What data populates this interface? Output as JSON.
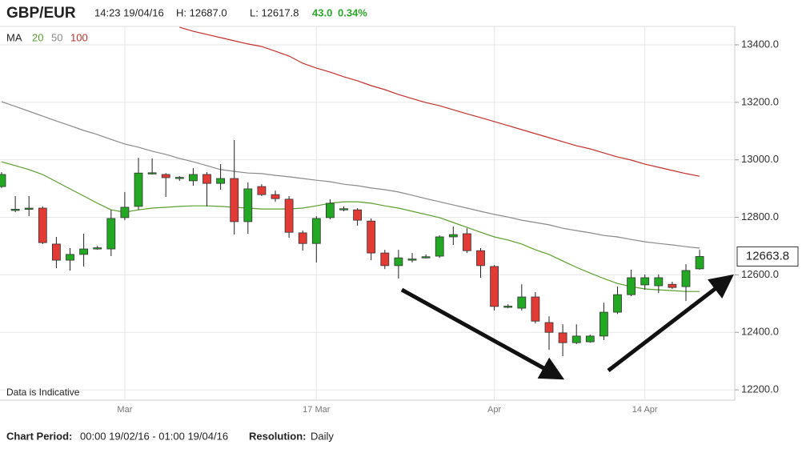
{
  "header": {
    "symbol": "GBP/EUR",
    "time": "14:23 19/04/16",
    "high": "H: 12687.0",
    "low": "L: 12617.8",
    "change": "43.0",
    "change_pct": "0.34%"
  },
  "chart_data": {
    "type": "candlestick",
    "categories": [
      null,
      null,
      null,
      null,
      null,
      null,
      null,
      null,
      null,
      "Mar",
      null,
      null,
      null,
      null,
      null,
      null,
      null,
      null,
      null,
      null,
      null,
      null,
      null,
      "17 Mar",
      null,
      null,
      null,
      null,
      null,
      null,
      null,
      null,
      null,
      null,
      null,
      null,
      "Apr",
      null,
      null,
      null,
      null,
      null,
      null,
      null,
      null,
      null,
      null,
      "14 Apr",
      null,
      null,
      null,
      null
    ],
    "open": [
      12907,
      12826,
      12830,
      12832,
      12707,
      12651,
      12671,
      12692,
      12690,
      12799,
      12838,
      12953,
      12949,
      12937,
      12927,
      12949,
      12918,
      12935,
      12785,
      12907,
      12879,
      12863,
      12746,
      12709,
      12799,
      12828,
      12826,
      12787,
      12676,
      12632,
      12653,
      12661,
      12665,
      12732,
      12743,
      12684,
      12629,
      12489,
      12484,
      12523,
      12434,
      12398,
      12364,
      12367,
      12387,
      12470,
      12531,
      12565,
      12562,
      12567,
      12559,
      12620.8
    ],
    "high": [
      12957,
      12874,
      12874,
      12838,
      12732,
      12693,
      12743,
      12701,
      12826,
      12888,
      13007,
      13005,
      12954,
      12943,
      12971,
      12957,
      12985,
      13069,
      12921,
      12915,
      12893,
      12874,
      12754,
      12804,
      12863,
      12838,
      12832,
      12796,
      12687,
      12687,
      12676,
      12671,
      12737,
      12768,
      12762,
      12693,
      12634,
      12498,
      12567,
      12540,
      12456,
      12428,
      12428,
      12392,
      12503,
      12559,
      12618,
      12601,
      12601,
      12576,
      12637,
      12687
    ],
    "low": [
      12902,
      12818,
      12804,
      12707,
      12623,
      12615,
      12629,
      12687,
      12665,
      12790,
      12826,
      12949,
      12871,
      12927,
      12910,
      12838,
      12896,
      12740,
      12743,
      12874,
      12854,
      12729,
      12684,
      12643,
      12793,
      12821,
      12771,
      12651,
      12620,
      12587,
      12643,
      12657,
      12659,
      12704,
      12676,
      12590,
      12476,
      12484,
      12476,
      12431,
      12339,
      12317,
      12359,
      12364,
      12373,
      12464,
      12526,
      12548,
      12537,
      12551,
      12509,
      12617.8
    ],
    "close": [
      12949,
      12828,
      12832,
      12712,
      12651,
      12671,
      12690,
      12694,
      12796,
      12835,
      12954,
      12955,
      12938,
      12939,
      12949,
      12918,
      12935,
      12785,
      12899,
      12879,
      12865,
      12748,
      12709,
      12796,
      12849,
      12830,
      12790,
      12676,
      12632,
      12659,
      12655,
      12663,
      12732,
      12740,
      12684,
      12632,
      12490,
      12491,
      12523,
      12439,
      12400,
      12364,
      12387,
      12387,
      12470,
      12531,
      12590,
      12590,
      12590,
      12556,
      12615,
      12663.8
    ],
    "up_color": "#22a822",
    "down_color": "#e23b36",
    "legend_title": "MA",
    "series": [
      {
        "name": "20",
        "color": "#5b9e2e",
        "values": [
          12993,
          12980,
          12966,
          12949,
          12924,
          12899,
          12874,
          12849,
          12826,
          12818,
          12826,
          12832,
          12835,
          12838,
          12840,
          12840,
          12838,
          12835,
          12832,
          12829,
          12829,
          12829,
          12832,
          12840,
          12849,
          12854,
          12854,
          12849,
          12840,
          12832,
          12821,
          12810,
          12799,
          12782,
          12765,
          12748,
          12732,
          12721,
          12707,
          12687,
          12671,
          12648,
          12626,
          12606,
          12587,
          12570,
          12559,
          12551,
          12548,
          12545,
          12542,
          12542
        ]
      },
      {
        "name": "50",
        "color": "#8a8a8a",
        "values": [
          13202,
          13186,
          13169,
          13152,
          13135,
          13119,
          13102,
          13088,
          13071,
          13055,
          13044,
          13030,
          13019,
          13005,
          12993,
          12980,
          12966,
          12960,
          12954,
          12952,
          12946,
          12941,
          12935,
          12929,
          12924,
          12915,
          12910,
          12902,
          12896,
          12888,
          12877,
          12865,
          12854,
          12843,
          12832,
          12821,
          12810,
          12801,
          12790,
          12782,
          12774,
          12762,
          12754,
          12746,
          12737,
          12732,
          12723,
          12715,
          12709,
          12704,
          12698,
          12693
        ]
      },
      {
        "name": "100",
        "color": "#c4302b",
        "values": [
          null,
          null,
          null,
          null,
          null,
          null,
          null,
          null,
          null,
          null,
          null,
          null,
          null,
          13461,
          13447,
          13436,
          13425,
          13414,
          13403,
          13394,
          13378,
          13361,
          13336,
          13319,
          13305,
          13289,
          13275,
          13258,
          13244,
          13227,
          13213,
          13199,
          13188,
          13174,
          13160,
          13147,
          13133,
          13119,
          13105,
          13091,
          13077,
          13063,
          13049,
          13038,
          13024,
          13010,
          12999,
          12985,
          12974,
          12963,
          12952,
          12943
        ]
      }
    ],
    "ylim": [
      12164,
      13464
    ],
    "yticks": [
      {
        "value": 12200,
        "label": "12200.0"
      },
      {
        "value": 12400,
        "label": "12400.0"
      },
      {
        "value": 12600,
        "label": "12600.0"
      },
      {
        "value": 12800,
        "label": "12800.0"
      },
      {
        "value": 13000,
        "label": "13000.0"
      },
      {
        "value": 13200,
        "label": "13200.0"
      },
      {
        "value": 13400,
        "label": "13400.0"
      }
    ],
    "grid": true,
    "note": "Data is Indicative"
  },
  "footer": {
    "period_label": "Chart Period:",
    "period": "00:00 19/02/16 - 01:00 19/04/16",
    "resolution_label": "Resolution:",
    "resolution": "Daily"
  }
}
